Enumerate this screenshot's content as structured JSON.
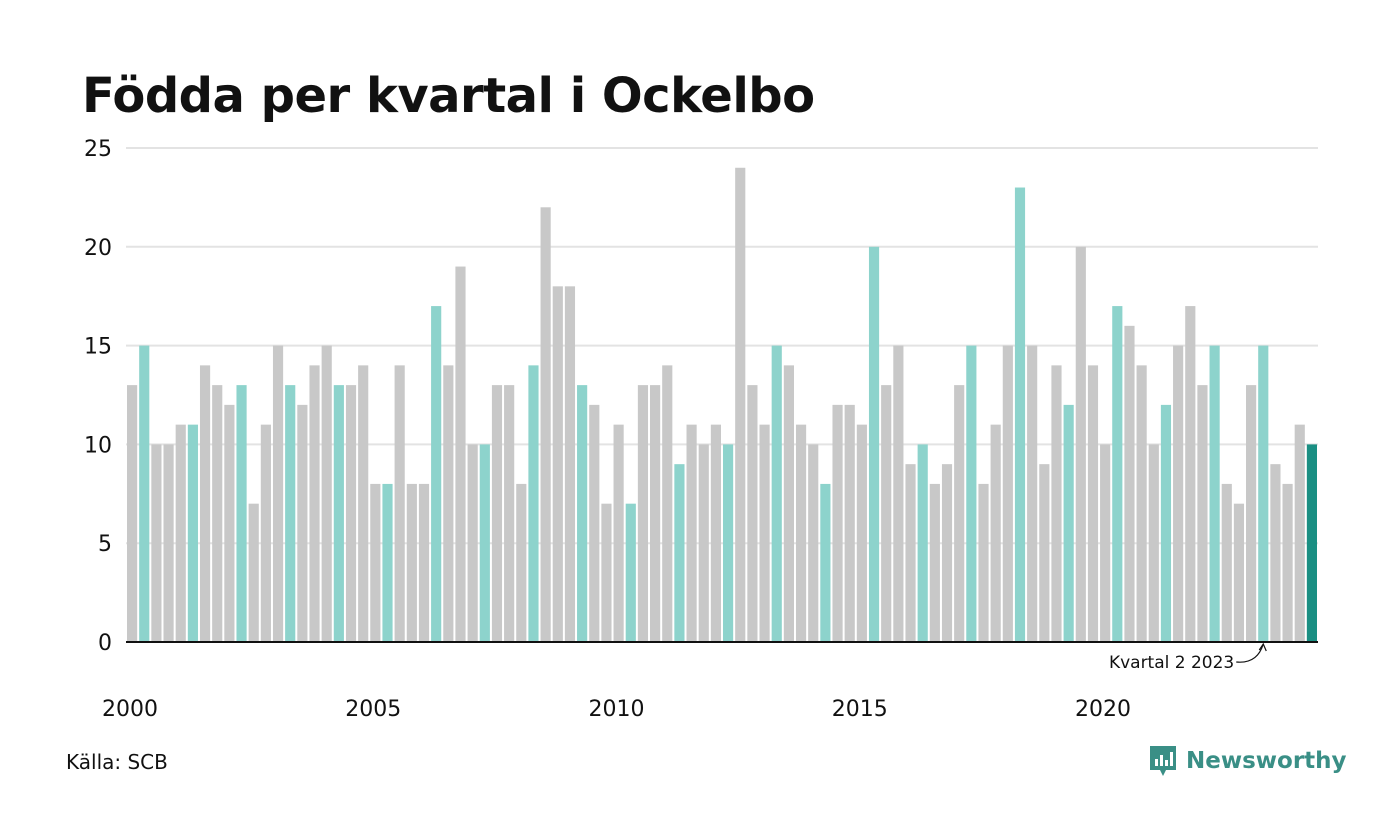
{
  "chart_data": {
    "type": "bar",
    "title": "Födda per kvartal i Ockelbo",
    "xlabel": "",
    "ylabel": "",
    "ylim": [
      0,
      25
    ],
    "yticks": [
      "0",
      "5",
      "10",
      "15",
      "20",
      "25"
    ],
    "xticks": [
      "2000",
      "2005",
      "2010",
      "2015",
      "2020"
    ],
    "x_start": "2000 Q1",
    "values": [
      13,
      15,
      10,
      10,
      11,
      11,
      14,
      13,
      12,
      13,
      7,
      11,
      15,
      13,
      12,
      14,
      15,
      13,
      13,
      14,
      8,
      8,
      14,
      8,
      8,
      17,
      14,
      19,
      10,
      10,
      13,
      13,
      8,
      14,
      22,
      18,
      18,
      13,
      12,
      7,
      11,
      7,
      13,
      13,
      14,
      9,
      11,
      10,
      11,
      10,
      24,
      13,
      11,
      15,
      14,
      11,
      10,
      8,
      12,
      12,
      11,
      20,
      13,
      15,
      9,
      10,
      8,
      9,
      13,
      15,
      8,
      11,
      15,
      23,
      15,
      9,
      14,
      12,
      20,
      14,
      10,
      17,
      16,
      14,
      10,
      12,
      15,
      17,
      13,
      15,
      8,
      7,
      13,
      15,
      9,
      8,
      11,
      10
    ],
    "highlight_quarter": 2,
    "colors": {
      "default_bar": "#c8c8c8",
      "quarter_bar": "#8dd3cc",
      "latest_bar": "#1a8f83",
      "gridline": "#e3e3e3",
      "axis": "#111111"
    },
    "annotation": "Kvartal 2 2023"
  },
  "source_text": "Källa: SCB",
  "logo": {
    "text": "Newsworthy",
    "icon": "newsworthy-chart-bubble-icon",
    "color": "#3a8f86"
  }
}
